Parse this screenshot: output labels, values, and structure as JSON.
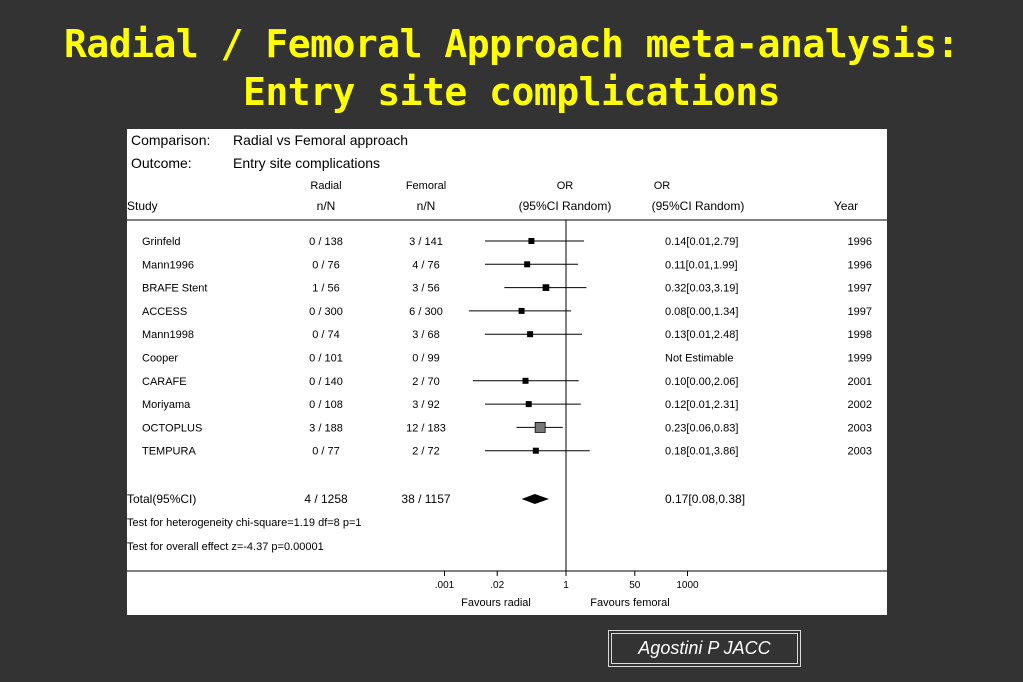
{
  "slide": {
    "title_line1": "Radial / Femoral Approach meta-analysis:",
    "title_line2": "Entry site complications",
    "citation": "Agostini P JACC"
  },
  "colors": {
    "background": "#333333",
    "title": "#ffff00",
    "panel": "#ffffff",
    "ink": "#000000"
  },
  "chart_data": {
    "type": "forest",
    "comparison_label": "Comparison:",
    "comparison_value": "Radial vs Femoral approach",
    "outcome_label": "Outcome:",
    "outcome_value": "Entry site complications",
    "headers": {
      "study": "Study",
      "radial_top": "Radial",
      "radial_bottom": "n/N",
      "femoral_top": "Femoral",
      "femoral_bottom": "n/N",
      "or_plot_top": "OR",
      "or_plot_bottom": "(95%CI Random)",
      "or_text_top": "OR",
      "or_text_bottom": "(95%CI Random)",
      "year": "Year"
    },
    "studies": [
      {
        "study": "Grinfeld",
        "radial": "0 / 138",
        "femoral": "3 / 141",
        "or_text": "0.14[0.01,2.79]",
        "year": "1996",
        "or": 0.14,
        "lo": 0.01,
        "hi": 2.79,
        "weight": 1
      },
      {
        "study": "Mann1996",
        "radial": "0 / 76",
        "femoral": "4 / 76",
        "or_text": "0.11[0.01,1.99]",
        "year": "1996",
        "or": 0.11,
        "lo": 0.01,
        "hi": 1.99,
        "weight": 1
      },
      {
        "study": "BRAFE Stent",
        "radial": "1 / 56",
        "femoral": "3 / 56",
        "or_text": "0.32[0.03,3.19]",
        "year": "1997",
        "or": 0.32,
        "lo": 0.03,
        "hi": 3.19,
        "weight": 1.3
      },
      {
        "study": "ACCESS",
        "radial": "0 / 300",
        "femoral": "6 / 300",
        "or_text": "0.08[0.00,1.34]",
        "year": "1997",
        "or": 0.08,
        "lo": 0.004,
        "hi": 1.34,
        "weight": 1
      },
      {
        "study": "Mann1998",
        "radial": "0 / 74",
        "femoral": "3 / 68",
        "or_text": "0.13[0.01,2.48]",
        "year": "1998",
        "or": 0.13,
        "lo": 0.01,
        "hi": 2.48,
        "weight": 1
      },
      {
        "study": "Cooper",
        "radial": "0 / 101",
        "femoral": "0 / 99",
        "or_text": "Not Estimable",
        "year": "1999",
        "or": null,
        "lo": null,
        "hi": null,
        "weight": 0
      },
      {
        "study": "CARAFE",
        "radial": "0 / 140",
        "femoral": "2 / 70",
        "or_text": "0.10[0.00,2.06]",
        "year": "2001",
        "or": 0.1,
        "lo": 0.005,
        "hi": 2.06,
        "weight": 1
      },
      {
        "study": "Moriyama",
        "radial": "0 / 108",
        "femoral": "3 / 92",
        "or_text": "0.12[0.01,2.31]",
        "year": "2002",
        "or": 0.12,
        "lo": 0.01,
        "hi": 2.31,
        "weight": 1
      },
      {
        "study": "OCTOPLUS",
        "radial": "3 / 188",
        "femoral": "12 / 183",
        "or_text": "0.23[0.06,0.83]",
        "year": "2003",
        "or": 0.23,
        "lo": 0.06,
        "hi": 0.83,
        "weight": 3.2
      },
      {
        "study": "TEMPURA",
        "radial": "0 / 77",
        "femoral": "2 / 72",
        "or_text": "0.18[0.01,3.86]",
        "year": "2003",
        "or": 0.18,
        "lo": 0.01,
        "hi": 3.86,
        "weight": 1
      }
    ],
    "total": {
      "label": "Total(95%CI)",
      "radial": "4 / 1258",
      "femoral": "38 / 1157",
      "or_text": "0.17[0.08,0.38]",
      "or": 0.17,
      "lo": 0.08,
      "hi": 0.38
    },
    "heterogeneity_text": "Test for heterogeneity chi-square=1.19  df=8  p=1",
    "overall_effect_text": "Test for overall effect  z=-4.37  p=0.00001",
    "x_axis": {
      "scale": "log",
      "ticks": [
        {
          "value": 0.001,
          "label": ".001"
        },
        {
          "value": 0.02,
          "label": ".02"
        },
        {
          "value": 1,
          "label": "1"
        },
        {
          "value": 50,
          "label": "50"
        },
        {
          "value": 1000,
          "label": "1000"
        }
      ],
      "favours_left": "Favours radial",
      "favours_right": "Favours femoral"
    }
  }
}
